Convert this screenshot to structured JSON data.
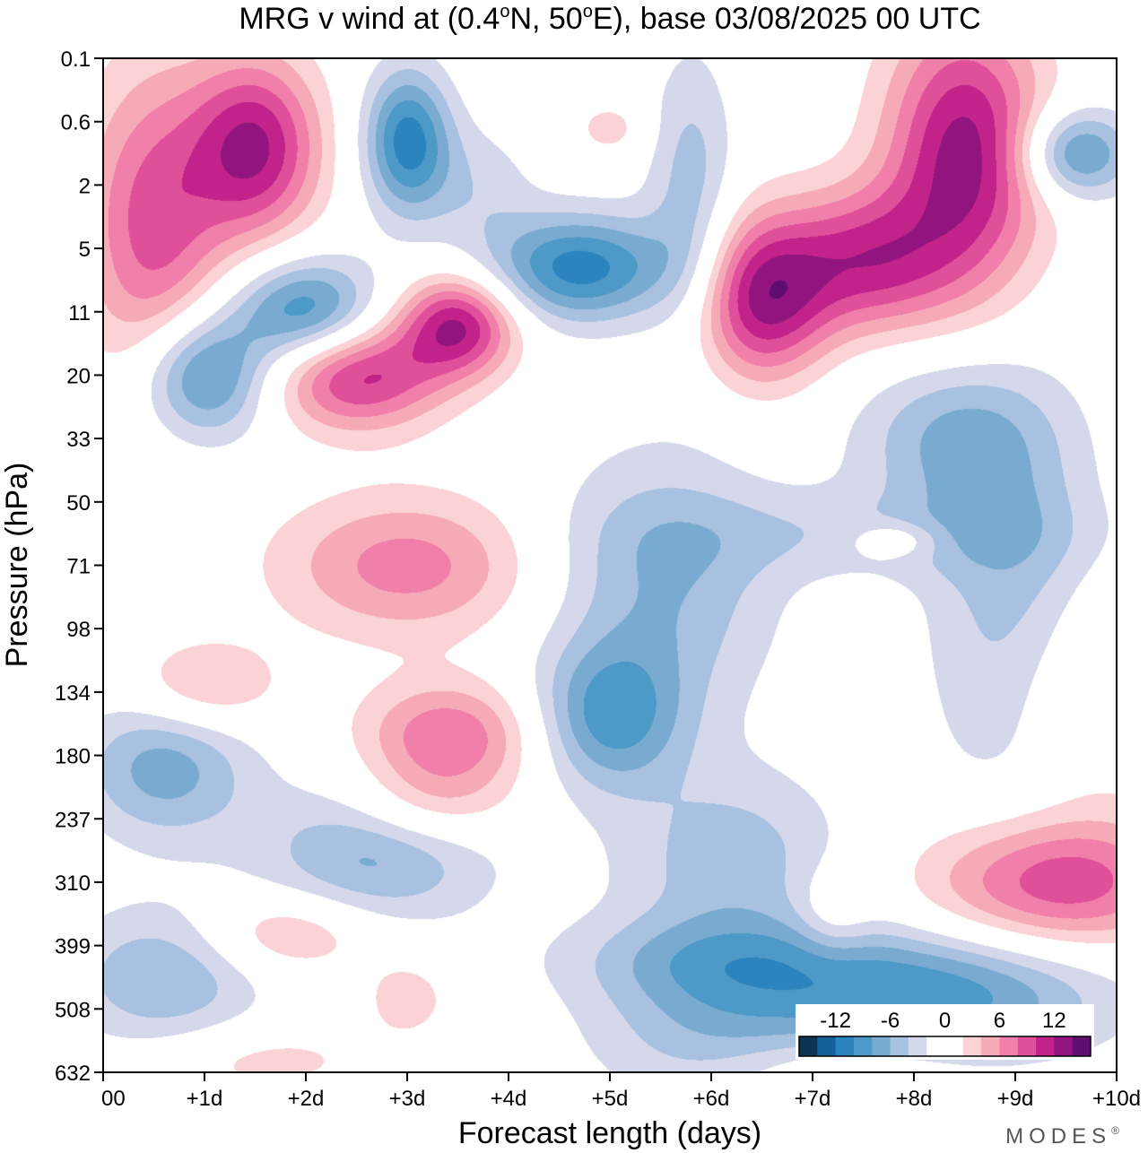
{
  "chart_data": {
    "type": "heatmap",
    "title": "MRG v wind at (0.4°N, 50°E),  base 03/08/2025  00 UTC",
    "title_parts": {
      "prefix": "MRG v wind at (0.4",
      "deg1": "o",
      "mid": "N, 50",
      "deg2": "o",
      "suffix": "E),  base 03/08/2025  00 UTC"
    },
    "xlabel": "Forecast length (days)",
    "ylabel": "Pressure (hPa)",
    "x_ticks": [
      "00",
      "+1d",
      "+2d",
      "+3d",
      "+4d",
      "+5d",
      "+6d",
      "+7d",
      "+8d",
      "+9d",
      "+10d"
    ],
    "xlim": [
      0,
      10
    ],
    "y_ticks": [
      "0.1",
      "0.6",
      "2",
      "5",
      "11",
      "20",
      "33",
      "50",
      "71",
      "98",
      "134",
      "180",
      "237",
      "310",
      "399",
      "508",
      "632"
    ],
    "ylim": [
      0.1,
      632
    ],
    "colorbar": {
      "labels": [
        "-12",
        "-6",
        "0",
        "6",
        "12"
      ],
      "levels": [
        -14,
        -12,
        -10,
        -8,
        -6,
        -4,
        -2,
        0,
        2,
        4,
        6,
        8,
        10,
        12,
        14
      ],
      "colors": [
        "#0d3452",
        "#14609a",
        "#2b84bd",
        "#4d99c7",
        "#79abd1",
        "#a8c1e0",
        "#d5d8eb",
        "#ffffff",
        "#ffffff",
        "#fbd2d5",
        "#f6aab8",
        "#f07fa9",
        "#e0509a",
        "#c1238a",
        "#92157f",
        "#5d0e6e"
      ]
    },
    "features": [
      {
        "day": 1.5,
        "lev": 1.4,
        "amp": 12,
        "sd": 0.45,
        "sl": 1.0
      },
      {
        "day": 0.5,
        "lev": 2.6,
        "amp": 9,
        "sd": 0.5,
        "sl": 1.7
      },
      {
        "day": 3.0,
        "lev": 1.3,
        "amp": -11,
        "sd": 0.3,
        "sl": 0.8
      },
      {
        "day": 4.7,
        "lev": 3.3,
        "amp": -11,
        "sd": 0.65,
        "sl": 0.6
      },
      {
        "day": 2.0,
        "lev": 4.0,
        "amp": -10,
        "sd": 0.5,
        "sl": 0.6
      },
      {
        "day": 1.0,
        "lev": 5.0,
        "amp": -10,
        "sd": 0.45,
        "sl": 0.7
      },
      {
        "day": 2.5,
        "lev": 5.0,
        "amp": 11,
        "sd": 0.6,
        "sl": 0.6
      },
      {
        "day": 3.5,
        "lev": 4.2,
        "amp": 12,
        "sd": 0.4,
        "sl": 0.55
      },
      {
        "day": 6.5,
        "lev": 3.8,
        "amp": 12,
        "sd": 0.45,
        "sl": 0.9
      },
      {
        "day": 7.5,
        "lev": 3.2,
        "amp": 10,
        "sd": 0.6,
        "sl": 0.8
      },
      {
        "day": 8.5,
        "lev": 1.5,
        "amp": 13,
        "sd": 0.55,
        "sl": 1.5
      },
      {
        "day": 9.6,
        "lev": 1.5,
        "amp": -9,
        "sd": 0.4,
        "sl": 0.5
      },
      {
        "day": 5.8,
        "lev": 2.0,
        "amp": -5,
        "sd": 0.3,
        "sl": 1.5
      },
      {
        "day": 8.4,
        "lev": 6.0,
        "amp": -6,
        "sd": 0.7,
        "sl": 0.9
      },
      {
        "day": 9.0,
        "lev": 9.0,
        "amp": -6,
        "sd": 0.6,
        "sl": 2.2
      },
      {
        "day": 3.2,
        "lev": 11.8,
        "amp": 5,
        "sd": 0.6,
        "sl": 0.5
      },
      {
        "day": 3.0,
        "lev": 14.8,
        "amp": 3,
        "sd": 0.35,
        "sl": 0.5
      },
      {
        "day": 1.5,
        "lev": 15.8,
        "amp": 3,
        "sd": 0.8,
        "sl": 0.4
      },
      {
        "day": 6.2,
        "lev": 14.2,
        "amp": -4,
        "sd": 1.2,
        "sl": 0.5
      },
      {
        "day": 6.0,
        "lev": 15.2,
        "amp": -5,
        "sd": 0.9,
        "sl": 1.0
      },
      {
        "day": 3.0,
        "lev": 8.0,
        "amp": 7,
        "sd": 0.9,
        "sl": 0.8
      },
      {
        "day": 5.5,
        "lev": 8.3,
        "amp": -6,
        "sd": 0.8,
        "sl": 1.5
      },
      {
        "day": 5.0,
        "lev": 10.4,
        "amp": -8,
        "sd": 0.5,
        "sl": 0.8
      },
      {
        "day": 3.4,
        "lev": 10.7,
        "amp": 8,
        "sd": 0.6,
        "sl": 0.6
      },
      {
        "day": 1.0,
        "lev": 9.9,
        "amp": 5,
        "sd": 0.5,
        "sl": 0.5
      },
      {
        "day": 0.6,
        "lev": 11.2,
        "amp": -7,
        "sd": 0.6,
        "sl": 0.8
      },
      {
        "day": 2.7,
        "lev": 12.5,
        "amp": -7,
        "sd": 0.8,
        "sl": 0.8
      },
      {
        "day": 1.8,
        "lev": 13.8,
        "amp": 5,
        "sd": 0.6,
        "sl": 0.45
      },
      {
        "day": 0.6,
        "lev": 14.5,
        "amp": -6,
        "sd": 0.7,
        "sl": 0.8
      },
      {
        "day": 8.2,
        "lev": 14.8,
        "amp": -9,
        "sd": 1.2,
        "sl": 0.7
      },
      {
        "day": 9.4,
        "lev": 13.0,
        "amp": 10,
        "sd": 0.9,
        "sl": 0.75
      },
      {
        "day": 9.5,
        "lev": 10.0,
        "amp": 4,
        "sd": 0.6,
        "sl": 1.3
      },
      {
        "day": 7.2,
        "lev": 16.0,
        "amp": 3,
        "sd": 0.8,
        "sl": 0.4
      },
      {
        "day": 7.5,
        "lev": 7.5,
        "amp": -3,
        "sd": 1.5,
        "sl": 0.5
      },
      {
        "day": 7.8,
        "lev": 7.6,
        "amp": 4,
        "sd": 0.3,
        "sl": 0.2
      },
      {
        "day": 6.2,
        "lev": 12.6,
        "amp": -5,
        "sd": 0.8,
        "sl": 1.0
      },
      {
        "day": 7.2,
        "lev": 13.5,
        "amp": 3,
        "sd": 0.25,
        "sl": 0.5
      },
      {
        "day": 3.7,
        "lev": 2.0,
        "amp": -3,
        "sd": 0.4,
        "sl": 0.7
      },
      {
        "day": 5.0,
        "lev": 1.1,
        "amp": 3,
        "sd": 0.25,
        "sl": 0.3
      }
    ]
  },
  "brand": "MODES",
  "brand_reg": "®"
}
